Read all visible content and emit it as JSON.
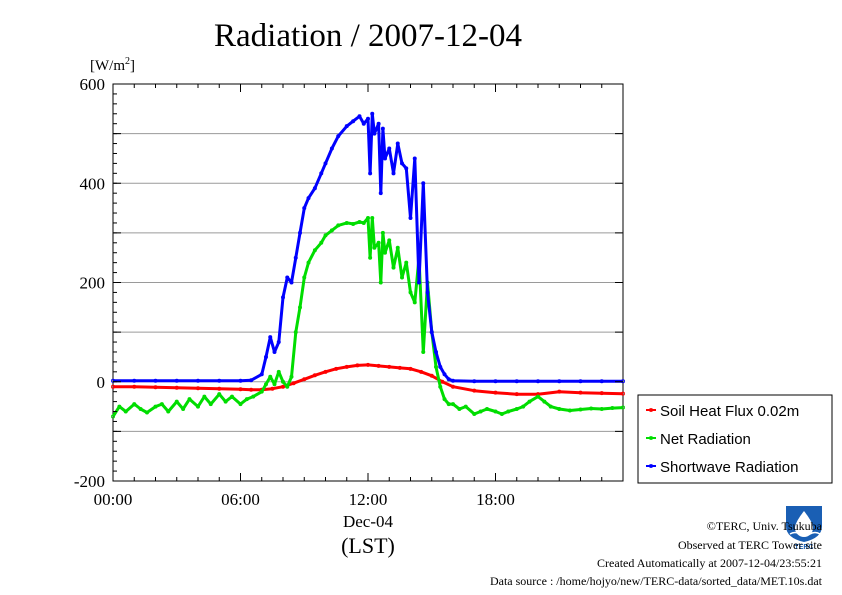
{
  "chart_data": {
    "type": "line",
    "title": "Radiation / 2007-12-04",
    "ylabel_unit": "[W/m",
    "ylabel_unit_sup": "2",
    "ylabel_unit_close": "]",
    "ylim": [
      -200,
      600
    ],
    "yticks": [
      -200,
      0,
      200,
      400,
      600
    ],
    "ytick_labels": [
      "-200",
      "0",
      "200",
      "400",
      "600"
    ],
    "xlim": [
      0,
      24
    ],
    "xticks": [
      0,
      6,
      12,
      18
    ],
    "xtick_labels": [
      "00:00",
      "06:00",
      "12:00",
      "18:00"
    ],
    "x_date_label": "Dec-04",
    "xlabel": "(LST)",
    "grid": true,
    "legend_position": "right, lower",
    "series": [
      {
        "name": "Soil Heat Flux 0.02m",
        "color": "#ff0000",
        "x": [
          0,
          1,
          2,
          3,
          4,
          5,
          6,
          6.5,
          7,
          7.5,
          8,
          8.5,
          9,
          9.5,
          10,
          10.5,
          11,
          11.5,
          12,
          12.5,
          13,
          13.5,
          14,
          14.5,
          15,
          15.5,
          16,
          17,
          18,
          19,
          20,
          21,
          22,
          23,
          24
        ],
        "y": [
          -10,
          -10,
          -11,
          -12,
          -13,
          -14,
          -15,
          -16,
          -16,
          -14,
          -10,
          -3,
          5,
          13,
          20,
          26,
          30,
          33,
          34,
          32,
          30,
          28,
          26,
          20,
          12,
          0,
          -10,
          -18,
          -22,
          -25,
          -25,
          -20,
          -22,
          -23,
          -24
        ]
      },
      {
        "name": "Net Radiation",
        "color": "#00dd00",
        "x": [
          0,
          0.3,
          0.6,
          1,
          1.3,
          1.6,
          2,
          2.3,
          2.6,
          3,
          3.3,
          3.6,
          4,
          4.3,
          4.6,
          5,
          5.3,
          5.6,
          6,
          6.3,
          6.6,
          7,
          7.2,
          7.4,
          7.6,
          7.8,
          8,
          8.2,
          8.4,
          8.6,
          8.8,
          9,
          9.2,
          9.5,
          9.8,
          10,
          10.3,
          10.6,
          11,
          11.3,
          11.6,
          11.8,
          12,
          12.1,
          12.2,
          12.3,
          12.5,
          12.6,
          12.7,
          12.8,
          13,
          13.2,
          13.4,
          13.6,
          13.8,
          14,
          14.2,
          14.4,
          14.6,
          14.8,
          15,
          15.2,
          15.4,
          15.6,
          15.8,
          16,
          16.3,
          16.6,
          17,
          17.3,
          17.6,
          18,
          18.3,
          18.6,
          19,
          19.3,
          19.6,
          20,
          20.3,
          20.6,
          21,
          21.5,
          22,
          22.5,
          23,
          23.5,
          24
        ],
        "y": [
          -70,
          -50,
          -60,
          -45,
          -55,
          -62,
          -50,
          -45,
          -60,
          -40,
          -55,
          -35,
          -50,
          -30,
          -45,
          -25,
          -40,
          -30,
          -45,
          -35,
          -30,
          -20,
          -5,
          10,
          -5,
          20,
          0,
          -10,
          10,
          100,
          150,
          210,
          240,
          265,
          280,
          295,
          305,
          315,
          320,
          318,
          322,
          320,
          330,
          250,
          330,
          270,
          280,
          200,
          300,
          260,
          285,
          230,
          270,
          210,
          240,
          180,
          160,
          250,
          60,
          200,
          100,
          30,
          -10,
          -35,
          -45,
          -45,
          -55,
          -50,
          -65,
          -60,
          -55,
          -60,
          -65,
          -60,
          -55,
          -50,
          -40,
          -30,
          -40,
          -50,
          -55,
          -58,
          -56,
          -54,
          -55,
          -53,
          -52
        ]
      },
      {
        "name": "Shortwave Radiation",
        "color": "#0000ff",
        "x": [
          0,
          1,
          2,
          3,
          4,
          5,
          6,
          6.5,
          7,
          7.2,
          7.4,
          7.6,
          7.8,
          8,
          8.2,
          8.4,
          8.6,
          8.8,
          9,
          9.2,
          9.5,
          9.8,
          10,
          10.3,
          10.6,
          11,
          11.3,
          11.6,
          11.8,
          12,
          12.1,
          12.2,
          12.3,
          12.5,
          12.6,
          12.7,
          12.8,
          13,
          13.2,
          13.4,
          13.6,
          13.8,
          14,
          14.2,
          14.4,
          14.6,
          14.8,
          15,
          15.2,
          15.4,
          15.6,
          15.8,
          16,
          17,
          18,
          19,
          20,
          21,
          22,
          23,
          24
        ],
        "y": [
          2,
          2,
          2,
          2,
          2,
          2,
          2,
          3,
          15,
          50,
          90,
          60,
          80,
          170,
          210,
          200,
          250,
          300,
          350,
          370,
          390,
          420,
          440,
          470,
          495,
          515,
          525,
          535,
          520,
          530,
          420,
          540,
          500,
          520,
          380,
          510,
          450,
          470,
          420,
          480,
          440,
          430,
          330,
          450,
          200,
          400,
          180,
          100,
          60,
          30,
          15,
          5,
          2,
          1,
          1,
          1,
          1,
          1,
          1,
          1,
          1
        ]
      }
    ]
  },
  "credits": {
    "copyright": "©TERC, Univ. Tsukuba",
    "observed": "Observed at TERC Tower site",
    "created": "Created Automatically at 2007-12-04/23:55:21",
    "source": "Data source : /home/hojyo/new/TERC-data/sorted_data/MET.10s.dat"
  },
  "logo": {
    "text": "TERC",
    "color": "#1a5fb4"
  }
}
